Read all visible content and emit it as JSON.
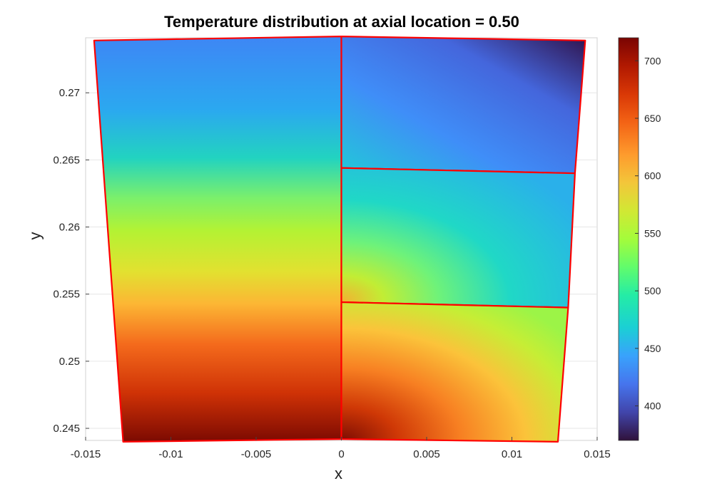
{
  "chart_data": {
    "type": "heatmap",
    "title": "Temperature distribution at axial location = 0.50",
    "xlabel": "x",
    "ylabel": "y",
    "xlim": [
      -0.015,
      0.015
    ],
    "ylim": [
      0.2441,
      0.2741
    ],
    "x_ticks": [
      -0.015,
      -0.01,
      -0.005,
      0,
      0.005,
      0.01,
      0.015
    ],
    "x_tick_labels": [
      "-0.015",
      "-0.01",
      "-0.005",
      "0",
      "0.005",
      "0.01",
      "0.015"
    ],
    "y_ticks": [
      0.245,
      0.25,
      0.255,
      0.26,
      0.265,
      0.27
    ],
    "y_tick_labels": [
      "0.245",
      "0.25",
      "0.255",
      "0.26",
      "0.265",
      "0.27"
    ],
    "grid": true,
    "colorbar": {
      "clim": [
        370,
        720
      ],
      "ticks": [
        400,
        450,
        500,
        550,
        600,
        650,
        700
      ],
      "tick_labels": [
        "400",
        "450",
        "500",
        "550",
        "600",
        "650",
        "700"
      ],
      "colormap": "turbo"
    },
    "outline_color": "#ff0000",
    "regions": [
      {
        "name": "left-half",
        "polygon": [
          [
            -0.0145,
            0.2739
          ],
          [
            0,
            0.2742
          ],
          [
            0,
            0.2442
          ],
          [
            -0.0128,
            0.244
          ]
        ],
        "temperature_top": 440,
        "temperature_bottom": 715
      },
      {
        "name": "right-top",
        "polygon": [
          [
            0,
            0.2742
          ],
          [
            0.0143,
            0.2739
          ],
          [
            0.0137,
            0.264
          ],
          [
            0,
            0.2644
          ]
        ],
        "temperature_range": [
          380,
          470
        ]
      },
      {
        "name": "right-middle",
        "polygon": [
          [
            0,
            0.2644
          ],
          [
            0.0137,
            0.264
          ],
          [
            0.0133,
            0.254
          ],
          [
            0,
            0.2544
          ]
        ],
        "temperature_range": [
          460,
          590
        ]
      },
      {
        "name": "right-bottom",
        "polygon": [
          [
            0,
            0.2544
          ],
          [
            0.0133,
            0.254
          ],
          [
            0.0127,
            0.244
          ],
          [
            0,
            0.2442
          ]
        ],
        "temperature_range": [
          560,
          720
        ]
      }
    ]
  }
}
